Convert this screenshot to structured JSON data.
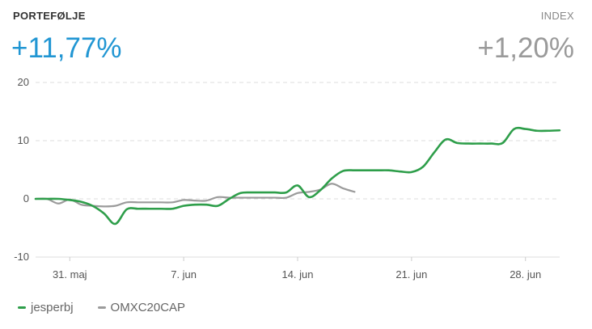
{
  "header": {
    "left_label": "PORTEFØLJE",
    "left_value": "+11,77%",
    "right_label": "INDEX",
    "right_value": "+1,20%"
  },
  "colors": {
    "accent": "#2196d3",
    "portfolio": "#2e9e4a",
    "index": "#9b9b9b"
  },
  "chart_data": {
    "type": "line",
    "title": "",
    "xlabel": "",
    "ylabel": "",
    "ylim": [
      -10,
      20
    ],
    "yticks": [
      20,
      10,
      0,
      -10
    ],
    "xlim": [
      0,
      46
    ],
    "xticks": [
      {
        "x": 3,
        "label": "31. maj"
      },
      {
        "x": 13,
        "label": "7. jun"
      },
      {
        "x": 23,
        "label": "14. jun"
      },
      {
        "x": 33,
        "label": "21. jun"
      },
      {
        "x": 43,
        "label": "28. jun"
      }
    ],
    "grid": "horizontal-dashed",
    "legend_position": "bottom-left",
    "series": [
      {
        "name": "jesperbj",
        "color": "#2e9e4a",
        "x": [
          0,
          1,
          2,
          3,
          4,
          5,
          6,
          7,
          8,
          9,
          10,
          11,
          12,
          13,
          14,
          15,
          16,
          17,
          18,
          19,
          20,
          21,
          22,
          23,
          24,
          25,
          26,
          27,
          28,
          29,
          30,
          31,
          32,
          33,
          34,
          35,
          36,
          37,
          38,
          39,
          40,
          41,
          42,
          43,
          44,
          45,
          46
        ],
        "values": [
          0,
          0,
          0,
          -0.2,
          -0.5,
          -1.2,
          -2.5,
          -4.3,
          -1.8,
          -1.7,
          -1.7,
          -1.7,
          -1.7,
          -1.2,
          -1.0,
          -1.0,
          -1.2,
          0,
          1.0,
          1.1,
          1.1,
          1.1,
          1.1,
          2.3,
          0.3,
          1.5,
          3.5,
          4.8,
          4.9,
          4.9,
          4.9,
          4.9,
          4.7,
          4.6,
          5.5,
          8.0,
          10.2,
          9.6,
          9.5,
          9.5,
          9.5,
          9.6,
          12.0,
          12.0,
          11.7,
          11.7,
          11.77
        ]
      },
      {
        "name": "OMXC20CAP",
        "color": "#9b9b9b",
        "x": [
          0,
          1,
          2,
          3,
          4,
          5,
          6,
          7,
          8,
          9,
          10,
          11,
          12,
          13,
          14,
          15,
          16,
          17,
          18,
          19,
          20,
          21,
          22,
          23,
          24,
          25,
          26,
          27,
          28
        ],
        "values": [
          0,
          0,
          -0.8,
          -0.1,
          -1.0,
          -1.2,
          -1.3,
          -1.2,
          -0.6,
          -0.6,
          -0.6,
          -0.6,
          -0.6,
          -0.2,
          -0.3,
          -0.3,
          0.3,
          0.2,
          0.2,
          0.2,
          0.2,
          0.2,
          0.2,
          1.0,
          1.2,
          1.6,
          2.6,
          1.8,
          1.2
        ]
      }
    ]
  }
}
